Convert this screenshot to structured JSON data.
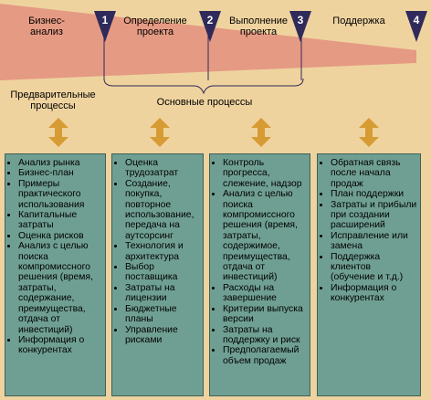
{
  "stages": [
    {
      "label": "Бизнес-\nанализ"
    },
    {
      "label": "Определение\nпроекта"
    },
    {
      "label": "Выполнение\nпроекта"
    },
    {
      "label": "Поддержка"
    }
  ],
  "markers": [
    "1",
    "2",
    "3",
    "4"
  ],
  "headings": {
    "preliminary": "Предварительные\nпроцессы",
    "main": "Основные процессы"
  },
  "columns": [
    {
      "items": [
        "Анализ рынка",
        "Бизнес-план",
        "Примеры практического использования",
        "Капитальные затраты",
        "Оценка рисков",
        "Анализ с целью поиска компромиссного решения (время, затраты, содержание, преимущества, отдача от инвестиций)",
        "Информация о конкурентах"
      ]
    },
    {
      "items": [
        "Оценка трудозатрат",
        "Создание, покупка, повторное использование, передача на аутсорсинг",
        "Технология и архитектура",
        "Выбор поставщика",
        "Затраты на лицензии",
        "Бюджетные планы",
        "Управление рисками"
      ]
    },
    {
      "items": [
        "Контроль прогресса, слежение, надзор",
        "Анализ с целью поиска компромиссного решения (время, затраты, содержимое, преимущества, отдача от инвестиций)",
        "Расходы на завершение",
        "Критерии выпуска версии",
        "Затраты на поддержку и риск",
        "Предполагаемый объем продаж"
      ]
    },
    {
      "items": [
        "Обратная связь после начала продаж",
        "План поддержки",
        "Затраты и прибыли при создании расширений",
        "Исправление или замена",
        "Поддержка клиентов (обучение и т.д.)",
        "Информация о конкурентах"
      ]
    }
  ],
  "colors": {
    "background": "#efd39f",
    "wedge": "#e59a83",
    "marker": "#2f2a5a",
    "arrow": "#d79b33",
    "box": "#6f9f92"
  },
  "icons": {
    "marker": "triangle-down",
    "arrow": "double-headed-vertical-arrow"
  }
}
